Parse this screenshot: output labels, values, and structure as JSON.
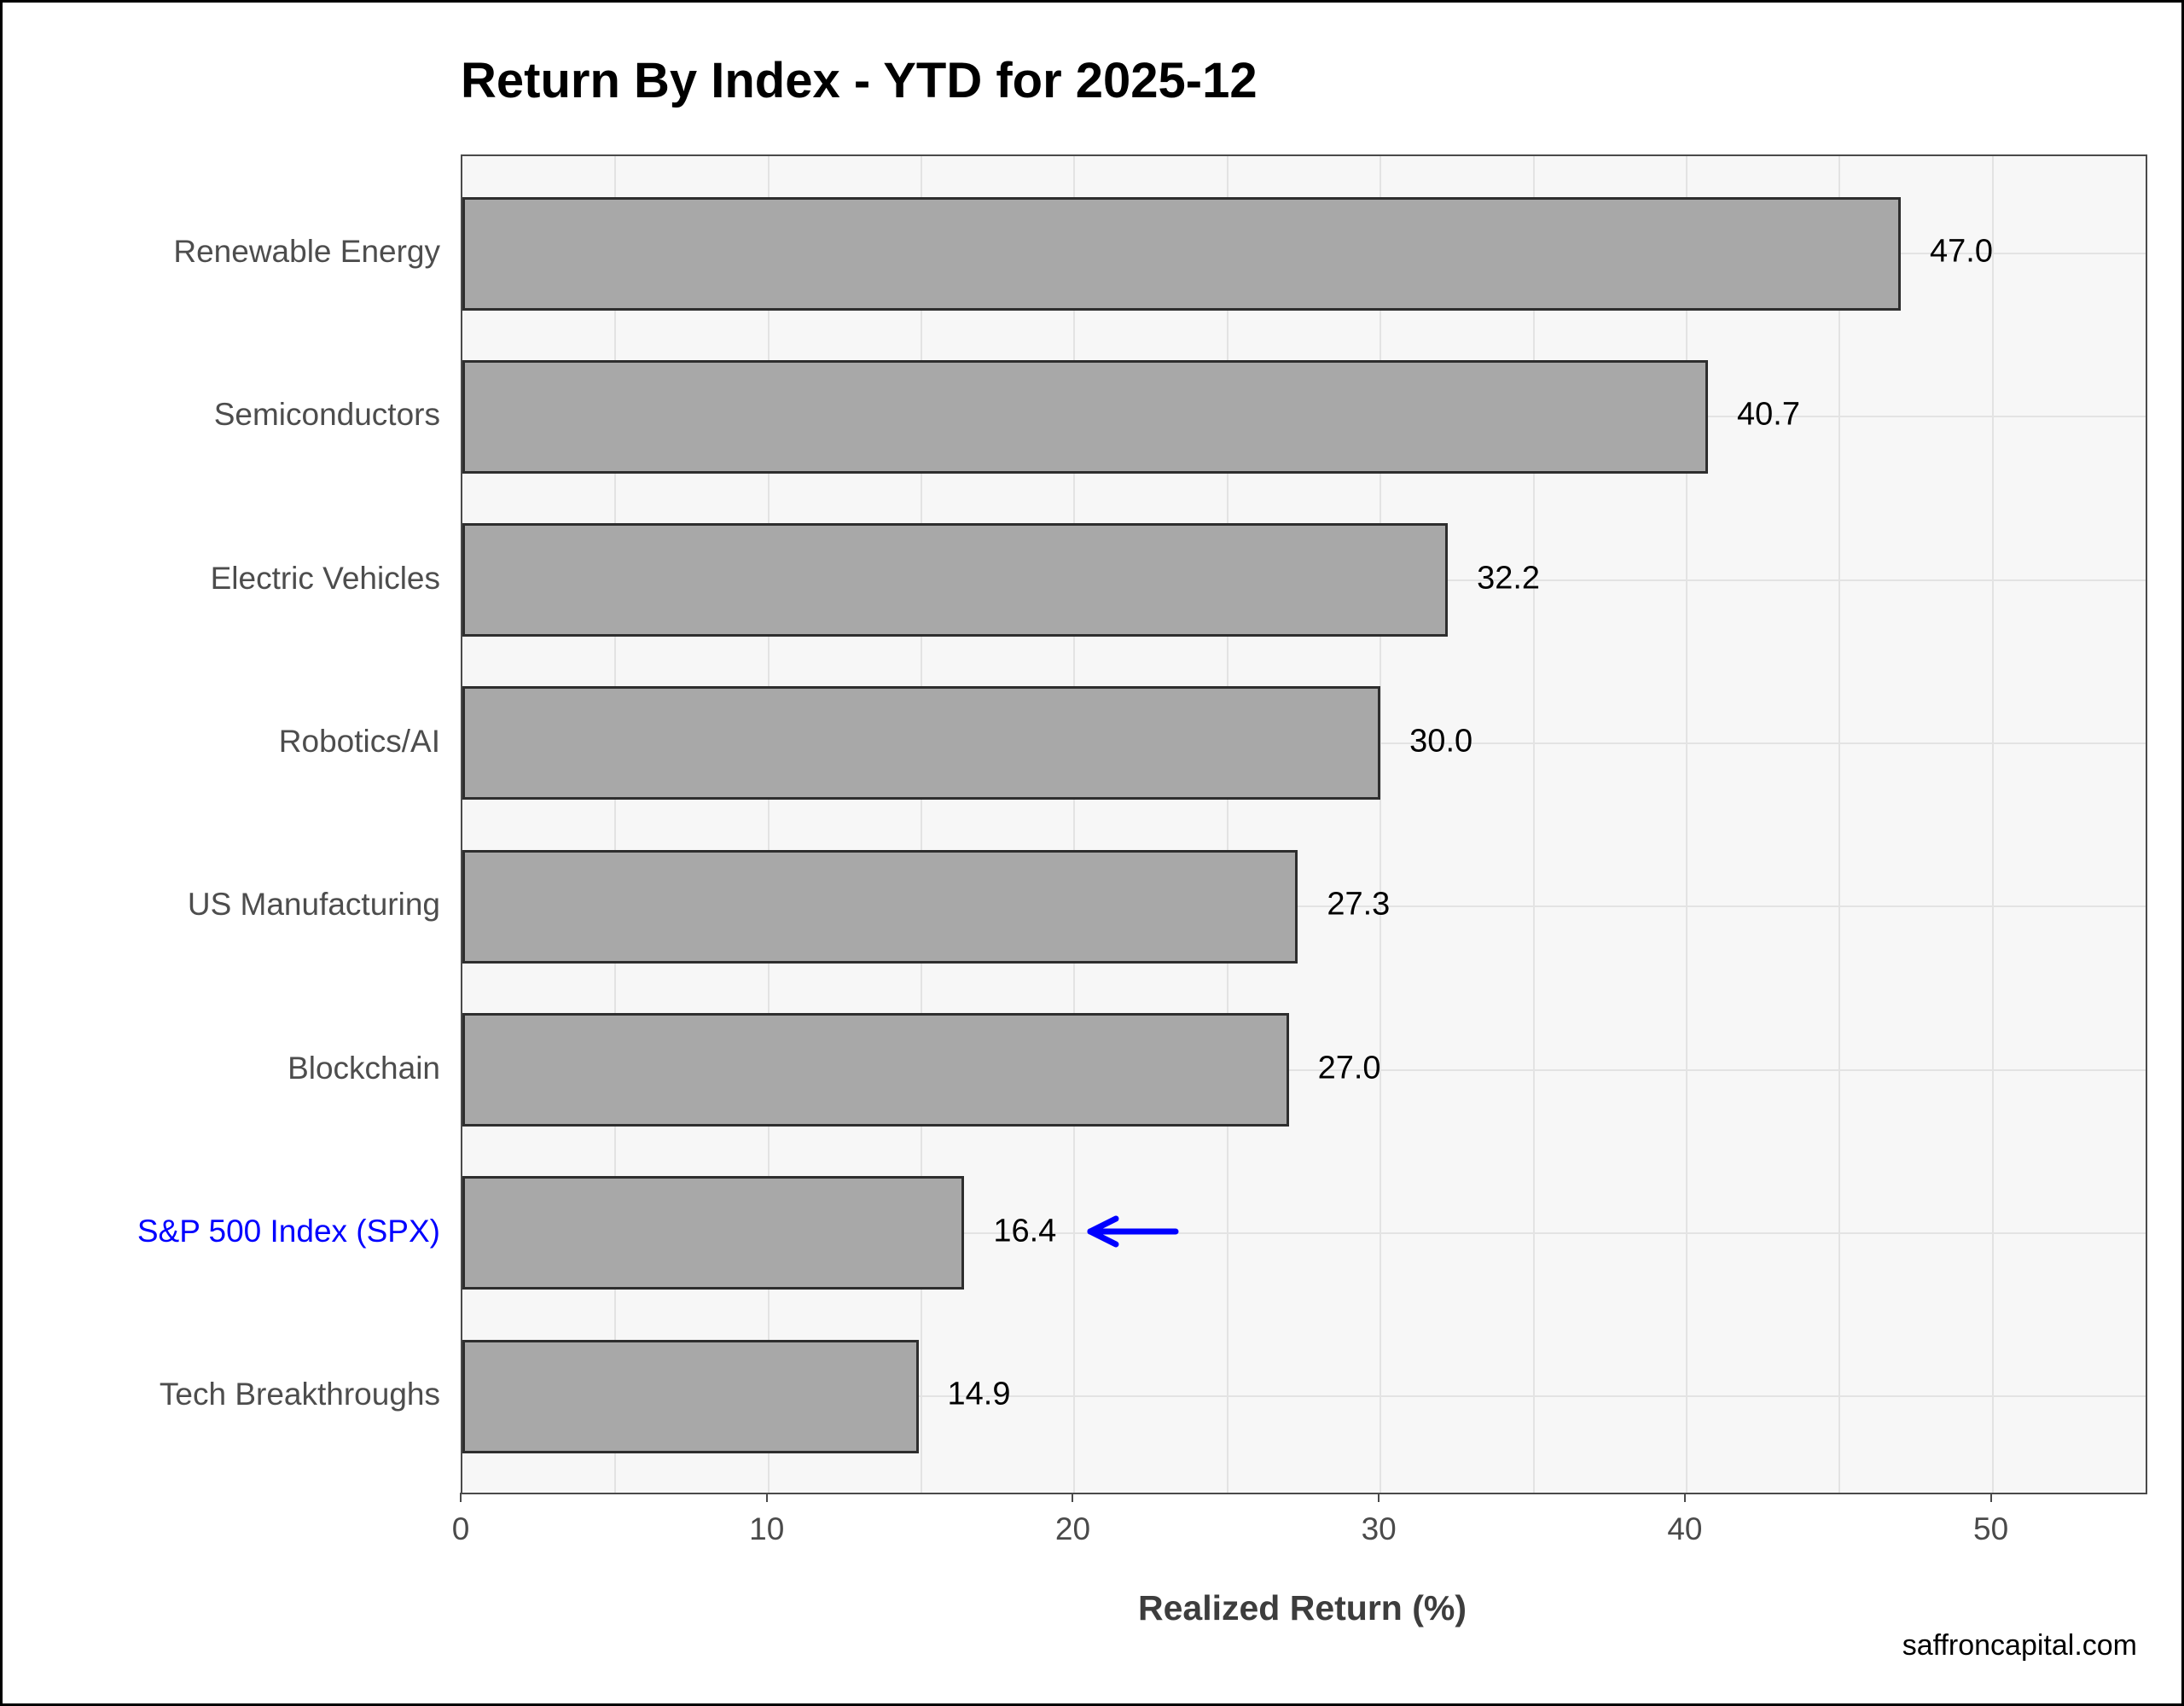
{
  "title": "Return By Index - YTD for 2025-12",
  "footer": "saffroncapital.com",
  "chart_data": {
    "type": "bar",
    "orientation": "horizontal",
    "title": "Return By Index - YTD for 2025-12",
    "categories": [
      "Renewable Energy",
      "Semiconductors",
      "Electric Vehicles",
      "Robotics/AI",
      "US Manufacturing",
      "Blockchain",
      "S&P 500 Index (SPX)",
      "Tech Breakthroughs"
    ],
    "values": [
      47.0,
      40.7,
      32.2,
      30.0,
      27.3,
      27.0,
      16.4,
      14.9
    ],
    "xlabel": "Realized Return (%)",
    "xlim": [
      0,
      55
    ],
    "xticks": [
      0,
      10,
      20,
      30,
      40,
      50
    ],
    "grid": true,
    "grid_minor_step": 5,
    "value_label_decimals": 1,
    "legend": "none",
    "highlight": {
      "category": "S&P 500 Index (SPX)",
      "index": 6,
      "color": "#0000FF",
      "annotation": "left-pointing arrow beside value label"
    },
    "colors": {
      "bar_fill": "#A8A8A8",
      "bar_edge": "#2E2E2E",
      "plot_bg": "#F7F7F7",
      "gridline": "#E3E3E3",
      "axis_label": "#4D4D4D",
      "value_label": "#000000",
      "highlight": "#0000FF"
    }
  }
}
